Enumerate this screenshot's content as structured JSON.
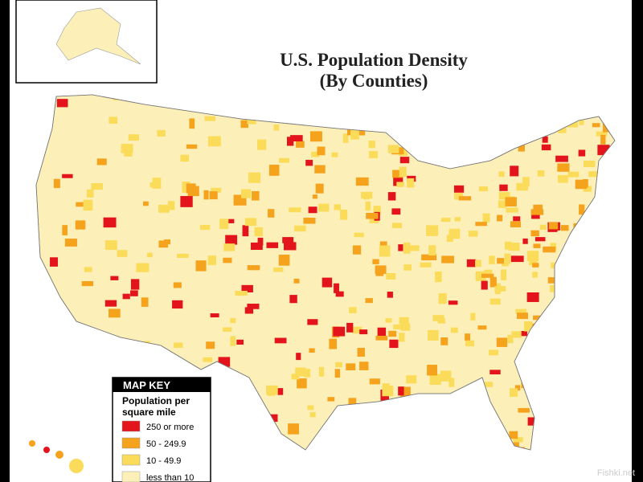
{
  "map": {
    "title": [
      "U.S. Population Density",
      "(By Counties)"
    ],
    "legend": {
      "heading": "MAP KEY",
      "title": [
        "Population per",
        "square mile"
      ],
      "items": [
        {
          "label": "250 or more",
          "color": "#e3141c"
        },
        {
          "label": "50 - 249.9",
          "color": "#f5a21d"
        },
        {
          "label": "10 - 49.9",
          "color": "#fbdc5a"
        },
        {
          "label": "less than 10",
          "color": "#fcefb8"
        }
      ]
    }
  },
  "watermark": "Fishki.net"
}
